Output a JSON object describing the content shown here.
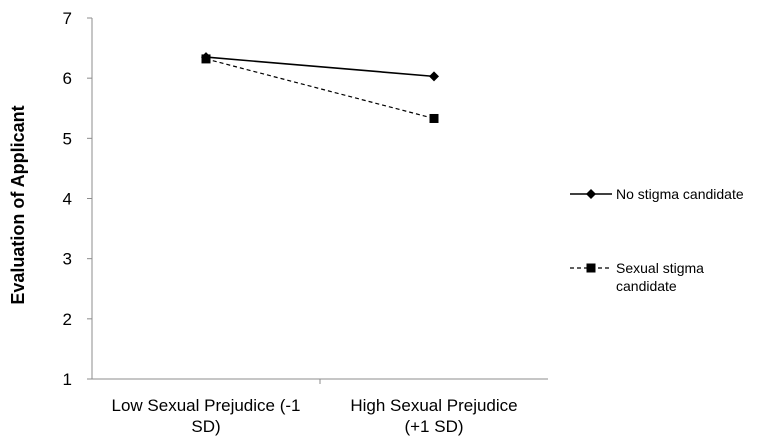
{
  "chart_data": {
    "type": "line",
    "title": "",
    "xlabel": "",
    "ylabel": "Evaluation of Applicant",
    "ylim": [
      1,
      7
    ],
    "yticks": [
      1,
      2,
      3,
      4,
      5,
      6,
      7
    ],
    "categories": [
      [
        "Low Sexual Prejudice (-1",
        "SD)"
      ],
      [
        "High Sexual Prejudice",
        "(+1 SD)"
      ]
    ],
    "grid": false,
    "legend_position": "right",
    "series": [
      {
        "name": "No stigma candidate",
        "name_lines": [
          "No stigma candidate"
        ],
        "values": [
          6.35,
          6.03
        ],
        "line_style": "solid",
        "marker": "diamond",
        "color": "#000000"
      },
      {
        "name": "Sexual stigma candidate",
        "name_lines": [
          "Sexual stigma",
          "candidate"
        ],
        "values": [
          6.32,
          5.33
        ],
        "line_style": "dashed",
        "marker": "square",
        "color": "#000000"
      }
    ]
  }
}
